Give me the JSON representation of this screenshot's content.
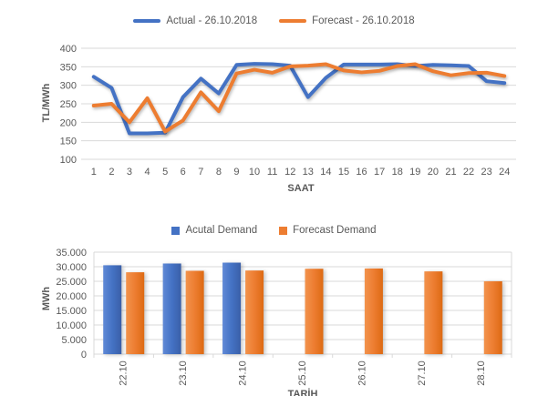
{
  "theme": {
    "accent_blue": "#4472C4",
    "accent_orange": "#ED7D31",
    "gridline": "#D9D9D9",
    "axis_text": "#595959"
  },
  "chart_data": [
    {
      "type": "line",
      "title": "",
      "xlabel": "SAAT",
      "ylabel": "TL/MWh",
      "ylim": [
        100,
        400
      ],
      "ytick_step": 50,
      "ytick_labels": [
        "400",
        "350",
        "300",
        "250",
        "200",
        "150",
        "100"
      ],
      "grid": true,
      "legend_position": "top",
      "x": [
        "1",
        "2",
        "3",
        "4",
        "5",
        "6",
        "7",
        "8",
        "9",
        "10",
        "11",
        "12",
        "13",
        "14",
        "15",
        "16",
        "17",
        "18",
        "19",
        "20",
        "21",
        "22",
        "23",
        "24"
      ],
      "series": [
        {
          "name": "Actual - 26.10.2018",
          "color": "#4472C4",
          "values": [
            323,
            293,
            170,
            170,
            172,
            268,
            318,
            278,
            355,
            358,
            357,
            353,
            268,
            320,
            356,
            356,
            356,
            357,
            352,
            355,
            354,
            352,
            311,
            306
          ]
        },
        {
          "name": "Forecast - 26.10.2018",
          "color": "#ED7D31",
          "values": [
            245,
            250,
            200,
            265,
            175,
            205,
            281,
            230,
            332,
            342,
            334,
            351,
            353,
            357,
            340,
            335,
            339,
            352,
            357,
            338,
            327,
            333,
            334,
            325
          ]
        }
      ]
    },
    {
      "type": "bar",
      "title": "",
      "xlabel": "TARİH",
      "ylabel": "MWh",
      "ylim": [
        0,
        35000
      ],
      "ytick_step": 5000,
      "ytick_labels": [
        "35.000",
        "30.000",
        "25.000",
        "20.000",
        "15.000",
        "10.000",
        "5.000",
        "0"
      ],
      "grid": true,
      "legend_position": "top",
      "categories": [
        "22.10",
        "23.10",
        "24.10",
        "25.10",
        "26.10",
        "27.10",
        "28.10"
      ],
      "series": [
        {
          "name": "Acutal Demand",
          "color": "#4472C4",
          "gradient": [
            "#6089D6",
            "#4472C4",
            "#3A5FA8"
          ],
          "values": [
            30500,
            31100,
            31400,
            null,
            null,
            null,
            null
          ]
        },
        {
          "name": "Forecast Demand",
          "color": "#ED7D31",
          "gradient": [
            "#F2934D",
            "#ED7D31",
            "#DD6A13"
          ],
          "values": [
            28100,
            28600,
            28700,
            29300,
            29400,
            28400,
            25000
          ]
        }
      ]
    }
  ]
}
